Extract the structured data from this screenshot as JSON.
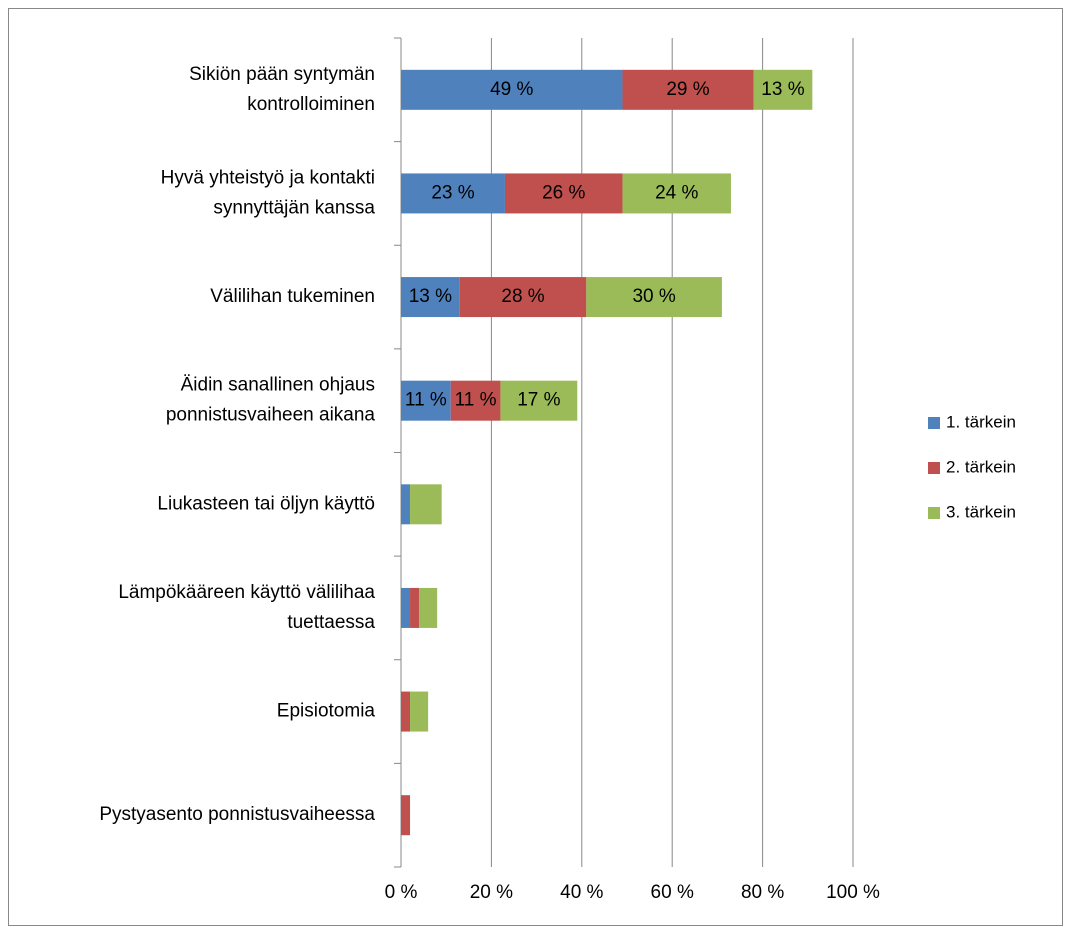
{
  "chart_data": {
    "type": "stacked-bar-horizontal",
    "categories": [
      "Sikiön pään syntymän\nkontrolloiminen",
      "Hyvä yhteistyö ja kontakti\nsynnyttäjän kanssa",
      "Välilihan tukeminen",
      "Äidin sanallinen ohjaus\nponnistusvaiheen aikana",
      "Liukasteen tai öljyn käyttö",
      "Lämpökääreen käyttö välilihaa\ntuettaessa",
      "Episiotomia",
      "Pystyasento ponnistusvaiheessa"
    ],
    "series": [
      {
        "name": "1. tärkein",
        "color": "#4f81bd",
        "values": [
          49,
          23,
          13,
          11,
          2,
          2,
          0,
          0
        ],
        "value_labels": [
          "49 %",
          "23 %",
          "13 %",
          "11 %",
          null,
          null,
          null,
          null
        ]
      },
      {
        "name": "2. tärkein",
        "color": "#c0504d",
        "values": [
          29,
          26,
          28,
          11,
          0,
          2,
          2,
          2
        ],
        "value_labels": [
          "29 %",
          "26 %",
          "28 %",
          "11 %",
          null,
          null,
          null,
          null
        ]
      },
      {
        "name": "3. tärkein",
        "color": "#9bbb59",
        "values": [
          13,
          24,
          30,
          17,
          7,
          4,
          4,
          0
        ],
        "value_labels": [
          "13 %",
          "24 %",
          "30 %",
          "17 %",
          null,
          null,
          null,
          null
        ]
      }
    ],
    "xlim": [
      0,
      100
    ],
    "xticks": [
      {
        "value": 0,
        "label": "0 %"
      },
      {
        "value": 20,
        "label": "20 %"
      },
      {
        "value": 40,
        "label": "40 %"
      },
      {
        "value": 60,
        "label": "60 %"
      },
      {
        "value": 80,
        "label": "80 %"
      },
      {
        "value": 100,
        "label": "100 %"
      }
    ],
    "grid": true,
    "legend": "right"
  }
}
